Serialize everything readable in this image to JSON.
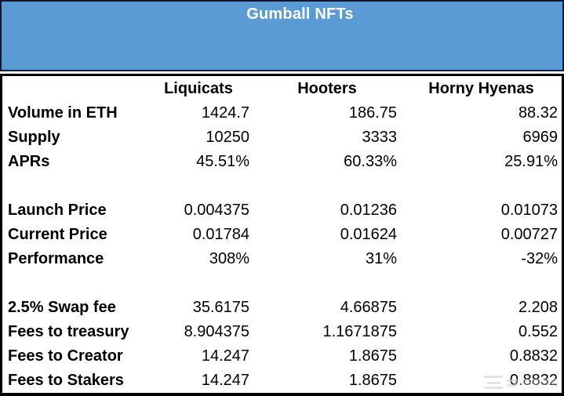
{
  "banner": {
    "title": "Gumball NFTs"
  },
  "table": {
    "columns": [
      "Liquicats",
      "Hooters",
      "Horny Hyenas"
    ],
    "rows": [
      {
        "label": "Volume in ETH",
        "values": [
          "1424.7",
          "186.75",
          "88.32"
        ]
      },
      {
        "label": "Supply",
        "values": [
          "10250",
          "3333",
          "6969"
        ]
      },
      {
        "label": "APRs",
        "values": [
          "45.51%",
          "60.33%",
          "25.91%"
        ]
      },
      {
        "label": "Launch Price",
        "values": [
          "0.004375",
          "0.01236",
          "0.01073"
        ]
      },
      {
        "label": "Current Price",
        "values": [
          "0.01784",
          "0.01624",
          "0.00727"
        ]
      },
      {
        "label": "Performance",
        "values": [
          "308%",
          "31%",
          "-32%"
        ]
      },
      {
        "label": "2.5% Swap fee",
        "values": [
          "35.6175",
          "4.66875",
          "2.208"
        ]
      },
      {
        "label": "Fees to treasury",
        "values": [
          "8.904375",
          "1.1671875",
          "0.552"
        ]
      },
      {
        "label": "Fees to Creator",
        "values": [
          "14.247",
          "1.8675",
          "0.8832"
        ]
      },
      {
        "label": "Fees to Stakers",
        "values": [
          "14.247",
          "1.8675",
          "0.8832"
        ]
      }
    ]
  },
  "colors": {
    "banner_bg": "#5b9bd5",
    "banner_border": "#14142e",
    "table_border": "#000000",
    "title_text": "#ffffff",
    "body_text": "#000000"
  },
  "icons": {
    "watermark": "faint-lines-watermark"
  }
}
